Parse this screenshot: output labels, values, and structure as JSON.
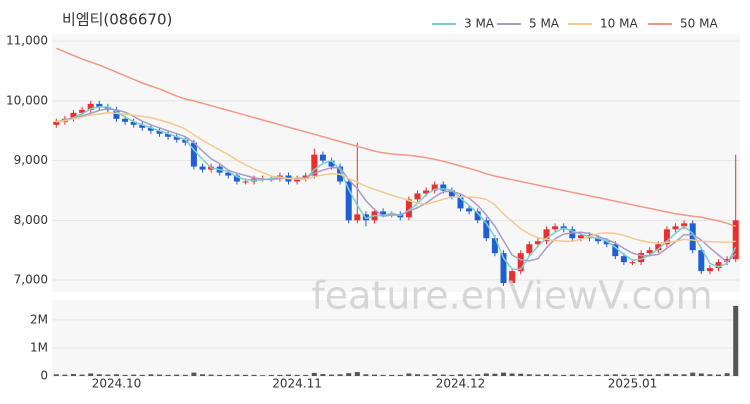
{
  "chart_data": {
    "type": "candlestick",
    "title": "비엠티(086670)",
    "watermark": "feature.enViewV.com",
    "categories": [
      null,
      null,
      null,
      null,
      null,
      null,
      null,
      "2024.10",
      null,
      null,
      null,
      null,
      null,
      null,
      null,
      null,
      null,
      null,
      null,
      null,
      null,
      null,
      null,
      null,
      null,
      null,
      null,
      null,
      "2024.11",
      null,
      null,
      null,
      null,
      null,
      null,
      null,
      null,
      null,
      null,
      null,
      null,
      null,
      null,
      null,
      null,
      null,
      null,
      "2024.12",
      null,
      null,
      null,
      null,
      null,
      null,
      null,
      null,
      null,
      null,
      null,
      null,
      null,
      null,
      null,
      null,
      null,
      null,
      null,
      "2025.01",
      null,
      null,
      null,
      null,
      null,
      null,
      null,
      null,
      null,
      null,
      null,
      null
    ],
    "open": [
      9600,
      9650,
      9700,
      9800,
      9850,
      9950,
      9900,
      9850,
      9700,
      9650,
      9600,
      9550,
      9500,
      9450,
      9400,
      9350,
      9300,
      8900,
      8850,
      8900,
      8800,
      8750,
      8650,
      8650,
      8700,
      8700,
      8700,
      8750,
      8650,
      8700,
      8750,
      9100,
      9000,
      8900,
      8650,
      8000,
      8100,
      8000,
      8150,
      8100,
      8100,
      8050,
      8350,
      8450,
      8500,
      8600,
      8500,
      8400,
      8200,
      8150,
      8000,
      7700,
      7450,
      6950,
      7150,
      7450,
      7600,
      7650,
      7850,
      7900,
      7850,
      7700,
      7750,
      7700,
      7650,
      7600,
      7400,
      7300,
      7300,
      7450,
      7500,
      7600,
      7850,
      7900,
      7950,
      7500,
      7150,
      7200,
      7300,
      7350
    ],
    "high": [
      9700,
      9750,
      9850,
      9900,
      10000,
      10000,
      9950,
      9900,
      9750,
      9700,
      9650,
      9600,
      9550,
      9500,
      9450,
      9400,
      9350,
      8950,
      8950,
      8950,
      8850,
      8800,
      8700,
      8750,
      8750,
      8750,
      8800,
      8800,
      8750,
      8800,
      9200,
      9150,
      9050,
      8950,
      8700,
      9300,
      8150,
      8200,
      8200,
      8150,
      8150,
      8400,
      8500,
      8550,
      8650,
      8650,
      8550,
      8450,
      8250,
      8200,
      8050,
      7750,
      7500,
      7200,
      7500,
      7650,
      7700,
      7900,
      7950,
      7950,
      7900,
      7800,
      7800,
      7750,
      7700,
      7650,
      7450,
      7350,
      7500,
      7550,
      7650,
      7900,
      7950,
      8000,
      8000,
      7550,
      7250,
      7350,
      7400,
      9100
    ],
    "low": [
      9550,
      9600,
      9650,
      9750,
      9800,
      9850,
      9800,
      9650,
      9600,
      9550,
      9500,
      9450,
      9400,
      9350,
      9300,
      9250,
      8850,
      8800,
      8800,
      8750,
      8700,
      8600,
      8600,
      8600,
      8650,
      8650,
      8650,
      8600,
      8600,
      8650,
      8700,
      8950,
      8850,
      8600,
      7950,
      7950,
      7900,
      7950,
      8050,
      8050,
      8000,
      8000,
      8300,
      8400,
      8450,
      8450,
      8350,
      8150,
      8100,
      7950,
      7650,
      7400,
      6900,
      6900,
      7100,
      7400,
      7550,
      7600,
      7800,
      7800,
      7650,
      7650,
      7650,
      7600,
      7550,
      7350,
      7250,
      7250,
      7250,
      7400,
      7450,
      7550,
      7800,
      7850,
      7450,
      7100,
      7100,
      7150,
      7250,
      7300
    ],
    "close": [
      9650,
      9700,
      9800,
      9850,
      9950,
      9900,
      9850,
      9700,
      9650,
      9600,
      9550,
      9500,
      9450,
      9400,
      9350,
      9300,
      8900,
      8850,
      8900,
      8800,
      8750,
      8650,
      8650,
      8700,
      8700,
      8700,
      8750,
      8650,
      8700,
      8750,
      9100,
      9000,
      8900,
      8650,
      8000,
      8100,
      8000,
      8150,
      8100,
      8100,
      8050,
      8350,
      8450,
      8500,
      8600,
      8500,
      8400,
      8200,
      8150,
      8000,
      7700,
      7450,
      6950,
      7150,
      7450,
      7600,
      7650,
      7850,
      7900,
      7850,
      7700,
      7750,
      7700,
      7650,
      7600,
      7400,
      7300,
      7300,
      7450,
      7500,
      7600,
      7850,
      7900,
      7950,
      7500,
      7150,
      7200,
      7300,
      7350,
      8000
    ],
    "volume": [
      60000,
      50000,
      70000,
      50000,
      90000,
      60000,
      50000,
      60000,
      40000,
      50000,
      40000,
      60000,
      50000,
      40000,
      50000,
      40000,
      120000,
      60000,
      50000,
      40000,
      40000,
      50000,
      40000,
      40000,
      30000,
      40000,
      40000,
      50000,
      40000,
      40000,
      110000,
      70000,
      50000,
      60000,
      100000,
      140000,
      60000,
      50000,
      40000,
      40000,
      40000,
      90000,
      60000,
      50000,
      60000,
      50000,
      40000,
      60000,
      50000,
      60000,
      90000,
      80000,
      120000,
      90000,
      80000,
      60000,
      50000,
      60000,
      50000,
      40000,
      50000,
      40000,
      40000,
      40000,
      50000,
      60000,
      50000,
      40000,
      60000,
      50000,
      60000,
      80000,
      60000,
      60000,
      120000,
      90000,
      60000,
      50000,
      100000,
      2500000
    ],
    "up_color": "#e8302f",
    "down_color": "#1f5fd1",
    "volume_color": "#555555",
    "series": [
      {
        "name": "3 MA",
        "color": "#78d0d2",
        "values": [
          9650,
          9680,
          9720,
          9780,
          9870,
          9900,
          9900,
          9820,
          9730,
          9650,
          9600,
          9550,
          9500,
          9450,
          9400,
          9350,
          9180,
          9020,
          8880,
          8850,
          8820,
          8730,
          8680,
          8670,
          8680,
          8700,
          8720,
          8700,
          8700,
          8700,
          8850,
          8950,
          9000,
          8850,
          8520,
          8250,
          8030,
          8080,
          8080,
          8120,
          8080,
          8170,
          8280,
          8430,
          8520,
          8530,
          8500,
          8370,
          8250,
          8120,
          7950,
          7720,
          7370,
          7180,
          7180,
          7400,
          7570,
          7700,
          7800,
          7870,
          7820,
          7770,
          7720,
          7700,
          7650,
          7550,
          7430,
          7330,
          7350,
          7420,
          7520,
          7650,
          7780,
          7900,
          7780,
          7530,
          7280,
          7220,
          7280,
          7550
        ]
      },
      {
        "name": "5 MA",
        "color": "#a99cc9",
        "values": [
          9650,
          9680,
          9720,
          9750,
          9790,
          9840,
          9870,
          9850,
          9810,
          9740,
          9660,
          9600,
          9550,
          9500,
          9450,
          9400,
          9300,
          9160,
          9030,
          8950,
          8840,
          8790,
          8750,
          8710,
          8690,
          8680,
          8700,
          8700,
          8700,
          8710,
          8790,
          8840,
          8880,
          8880,
          8680,
          8530,
          8330,
          8180,
          8070,
          8090,
          8090,
          8160,
          8210,
          8290,
          8390,
          8480,
          8490,
          8440,
          8370,
          8250,
          8090,
          7900,
          7660,
          7420,
          7340,
          7320,
          7360,
          7540,
          7690,
          7770,
          7790,
          7800,
          7780,
          7730,
          7680,
          7620,
          7530,
          7450,
          7410,
          7410,
          7430,
          7530,
          7640,
          7760,
          7760,
          7670,
          7540,
          7420,
          7300,
          7440
        ]
      },
      {
        "name": "10 MA",
        "color": "#f4c98f",
        "values": [
          9650,
          9670,
          9700,
          9730,
          9760,
          9780,
          9800,
          9790,
          9780,
          9760,
          9740,
          9720,
          9680,
          9640,
          9590,
          9530,
          9430,
          9340,
          9260,
          9180,
          9100,
          9010,
          8930,
          8860,
          8800,
          8740,
          8720,
          8700,
          8690,
          8690,
          8730,
          8760,
          8780,
          8770,
          8700,
          8640,
          8570,
          8520,
          8470,
          8420,
          8380,
          8330,
          8290,
          8270,
          8310,
          8350,
          8390,
          8390,
          8390,
          8380,
          8350,
          8260,
          8110,
          7980,
          7860,
          7770,
          7710,
          7680,
          7660,
          7650,
          7650,
          7680,
          7730,
          7780,
          7790,
          7780,
          7750,
          7700,
          7660,
          7630,
          7620,
          7630,
          7650,
          7680,
          7670,
          7650,
          7640,
          7640,
          7630,
          7650
        ]
      },
      {
        "name": "50 MA",
        "color": "#f29886",
        "values": [
          10880,
          10820,
          10760,
          10700,
          10650,
          10600,
          10540,
          10480,
          10420,
          10360,
          10300,
          10250,
          10200,
          10140,
          10080,
          10030,
          10000,
          9960,
          9920,
          9880,
          9840,
          9800,
          9760,
          9720,
          9680,
          9640,
          9600,
          9560,
          9520,
          9480,
          9440,
          9400,
          9360,
          9320,
          9280,
          9240,
          9200,
          9160,
          9130,
          9110,
          9100,
          9090,
          9070,
          9050,
          9020,
          8990,
          8950,
          8910,
          8870,
          8830,
          8780,
          8740,
          8710,
          8680,
          8650,
          8620,
          8590,
          8560,
          8530,
          8500,
          8470,
          8440,
          8410,
          8380,
          8350,
          8320,
          8290,
          8260,
          8230,
          8200,
          8170,
          8140,
          8110,
          8090,
          8070,
          8050,
          8020,
          7990,
          7950,
          7900
        ]
      }
    ],
    "ylim": [
      6800,
      11120
    ],
    "yticks": [
      {
        "value": 7000,
        "label": "7,000"
      },
      {
        "value": 8000,
        "label": "8,000"
      },
      {
        "value": 9000,
        "label": "9,000"
      },
      {
        "value": 10000,
        "label": "10,000"
      },
      {
        "value": 11000,
        "label": "11,000"
      }
    ],
    "volume_ylim": [
      0,
      2710000
    ],
    "volume_yticks": [
      0,
      {
        "value": 1000000,
        "label": "1M"
      },
      {
        "value": 2000000,
        "label": "2M"
      }
    ],
    "legend": "top-right"
  }
}
